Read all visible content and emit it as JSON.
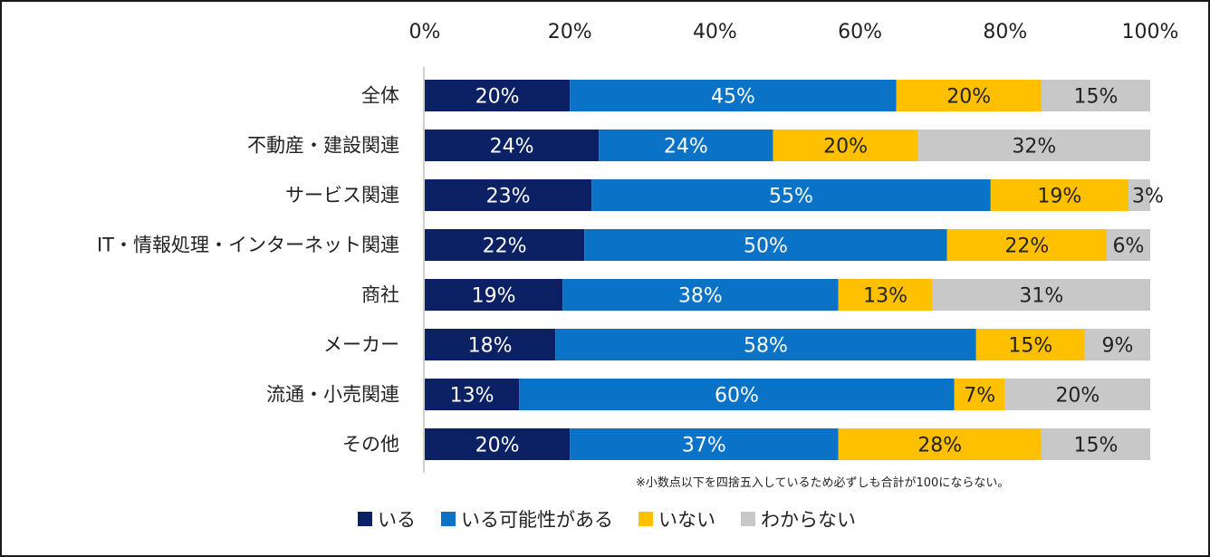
{
  "chart_data": {
    "type": "bar",
    "orientation": "horizontal",
    "stacked": true,
    "categories": [
      "全体",
      "不動産・建設関連",
      "サービス関連",
      "IT・情報処理・インターネット関連",
      "商社",
      "メーカー",
      "流通・小売関連",
      "その他"
    ],
    "series": [
      {
        "name": "いる",
        "color": "#0c2164",
        "label_color": "#ffffff",
        "values": [
          20,
          24,
          23,
          22,
          19,
          18,
          13,
          20
        ]
      },
      {
        "name": "いる可能性がある",
        "color": "#0a72c7",
        "label_color": "#ffffff",
        "values": [
          45,
          24,
          55,
          50,
          38,
          58,
          60,
          37
        ]
      },
      {
        "name": "いない",
        "color": "#ffc000",
        "label_color": "#222222",
        "values": [
          20,
          20,
          19,
          22,
          13,
          15,
          7,
          28
        ]
      },
      {
        "name": "わからない",
        "color": "#c8c8c8",
        "label_color": "#222222",
        "values": [
          15,
          32,
          3,
          6,
          31,
          9,
          20,
          15
        ]
      }
    ],
    "xlim": [
      0,
      100
    ],
    "x_ticks": [
      "0%",
      "20%",
      "40%",
      "60%",
      "80%",
      "100%"
    ],
    "x_tick_values": [
      0,
      20,
      40,
      60,
      80,
      100
    ],
    "x_axis_position": "top",
    "grid": false,
    "legend_position": "bottom",
    "value_suffix": "%",
    "note": "※小数点以下を四捨五入しているため必ずしも合計が100にならない。"
  }
}
